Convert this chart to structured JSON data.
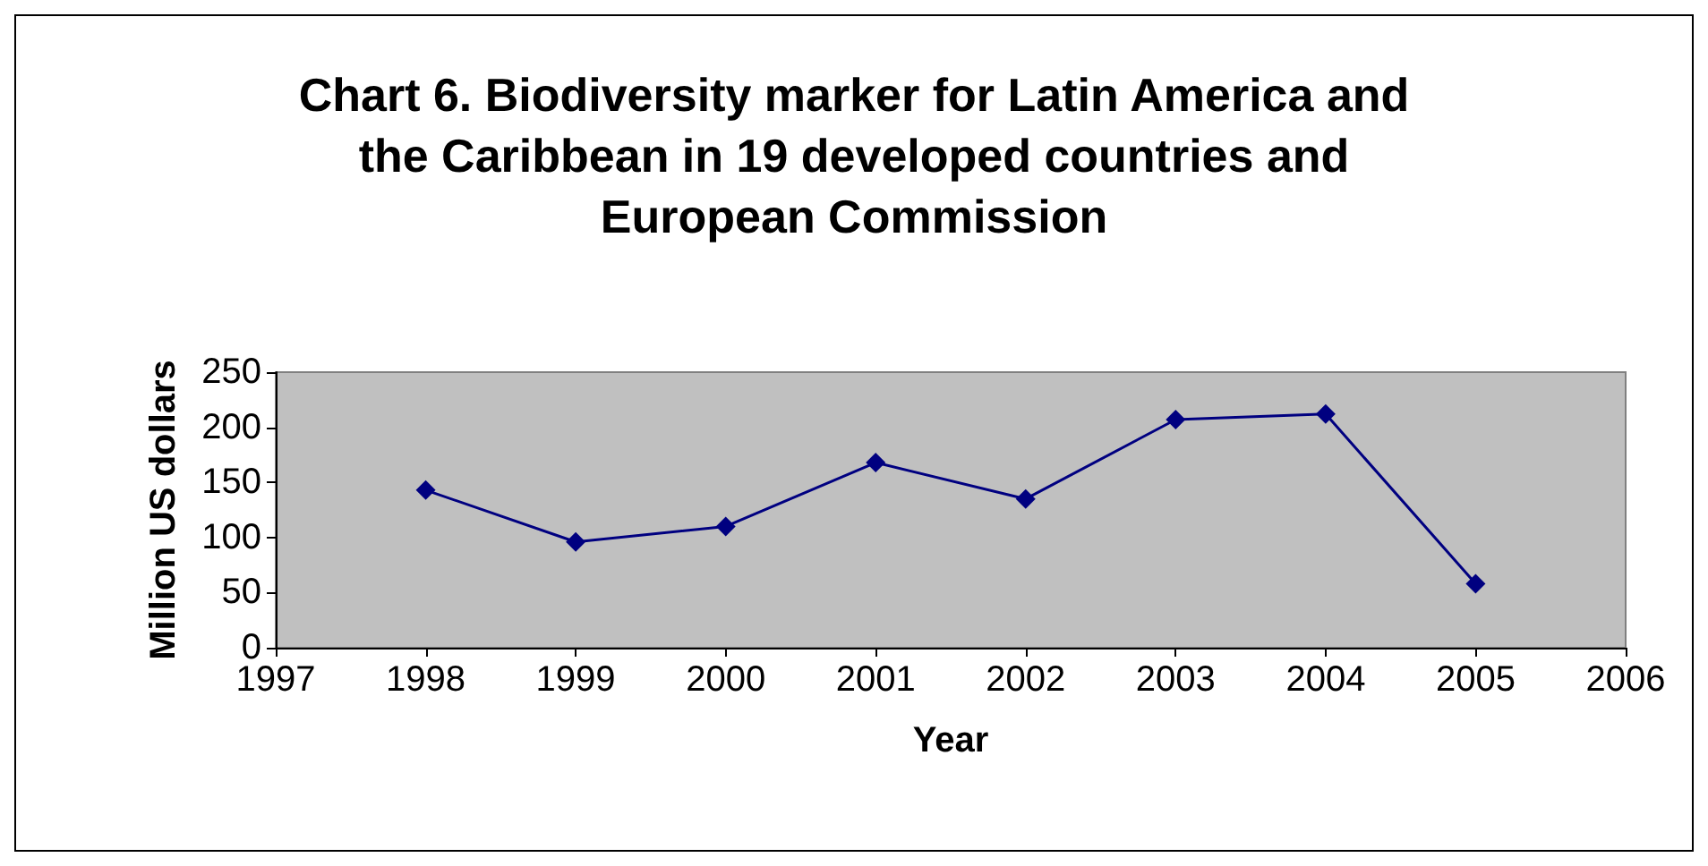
{
  "chart_data": {
    "type": "line",
    "title": "Chart 6. Biodiversity marker for Latin America and\nthe Caribbean in 19 developed countries and\nEuropean Commission",
    "xlabel": "Year",
    "ylabel": "Million US dollars",
    "x": [
      1998,
      1999,
      2000,
      2001,
      2002,
      2003,
      2004,
      2005
    ],
    "series": [
      {
        "color": "#000080",
        "values": [
          143,
          96,
          110,
          168,
          135,
          207,
          212,
          58
        ]
      }
    ],
    "xlim": [
      1997,
      2006
    ],
    "xticks": [
      1997,
      1998,
      1999,
      2000,
      2001,
      2002,
      2003,
      2004,
      2005,
      2006
    ],
    "ylim": [
      0,
      250
    ],
    "yticks": [
      0,
      50,
      100,
      150,
      200,
      250
    ],
    "grid": false,
    "marker": "diamond",
    "line_style": "solid"
  }
}
